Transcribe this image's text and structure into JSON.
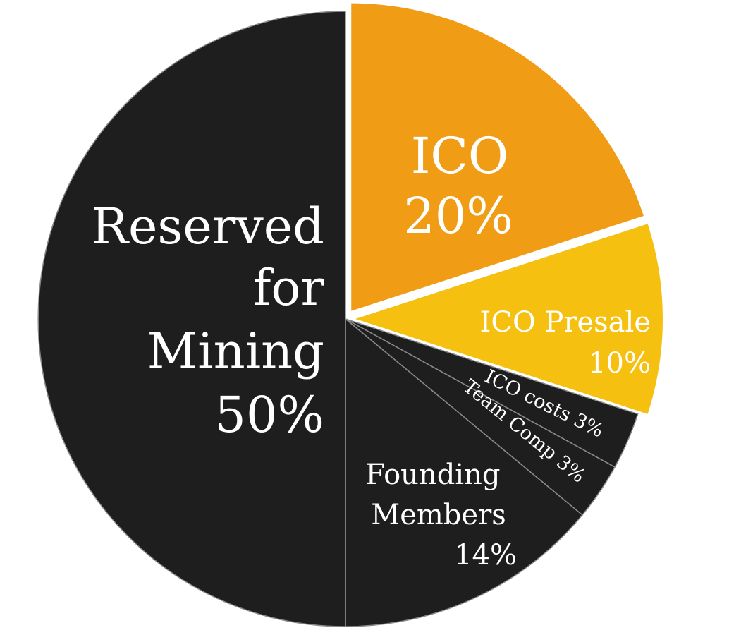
{
  "chart_data": {
    "type": "pie",
    "title": "",
    "legend": "none",
    "slices": [
      {
        "label": "ICO",
        "value": 20,
        "value_label": "20%",
        "color": "#f09c15",
        "exploded": true
      },
      {
        "label": "ICO Presale",
        "value": 10,
        "value_label": "10%",
        "color": "#f5c010",
        "exploded": true
      },
      {
        "label": "ICO costs",
        "value": 3,
        "value_label": "3%",
        "color": "#1e1e1e",
        "exploded": false
      },
      {
        "label": "Team Comp",
        "value": 3,
        "value_label": "3%",
        "color": "#1e1e1e",
        "exploded": false
      },
      {
        "label": "Founding Members",
        "value": 14,
        "value_label": "14%",
        "color": "#1e1e1e",
        "exploded": false
      },
      {
        "label": "Reserved for Mining",
        "value": 50,
        "value_label": "50%",
        "color": "#1e1e1e",
        "exploded": false
      }
    ]
  }
}
